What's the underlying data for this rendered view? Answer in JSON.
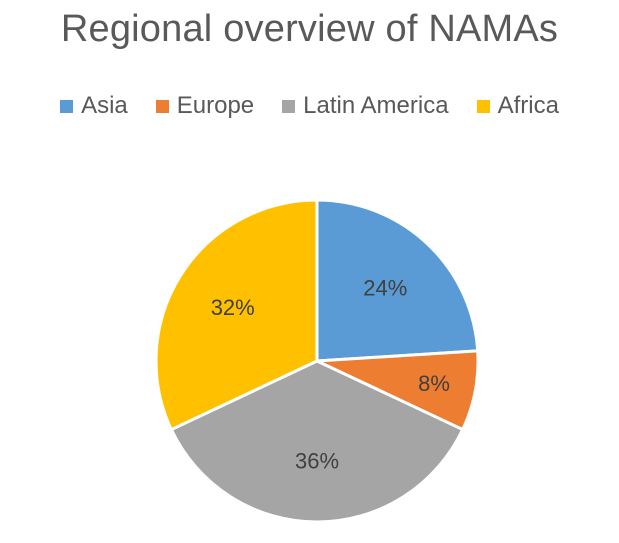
{
  "chart_data": {
    "type": "pie",
    "title": "Regional overview of NAMAs",
    "legend_position": "top",
    "categories": [
      "Asia",
      "Europe",
      "Latin America",
      "Africa"
    ],
    "values": [
      24,
      8,
      36,
      32
    ],
    "data_labels": [
      "24%",
      "8%",
      "36%",
      "32%"
    ],
    "colors": [
      "#5B9BD5",
      "#ED7D31",
      "#A5A5A5",
      "#FFC000"
    ],
    "start_angle_deg": 0,
    "direction": "clockwise"
  }
}
